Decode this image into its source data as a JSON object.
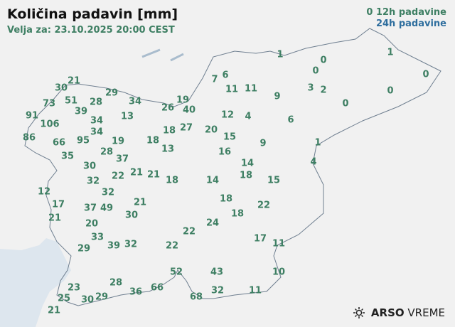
{
  "header": {
    "title": "Količina padavin [mm]",
    "valid": "Velja za: 23.10.2025 20:00 CEST"
  },
  "legend": {
    "item12": "12h padavine",
    "item24": "24h padavine",
    "marker12": "0",
    "color12": "#3e7f63",
    "color24": "#2e6e9e"
  },
  "stations": [
    "1",
    "0",
    "0",
    "1",
    "0",
    "0",
    "0",
    "3",
    "2",
    "6",
    "7",
    "11",
    "11",
    "9",
    "6",
    "12",
    "4",
    "20",
    "15",
    "9",
    "1",
    "4",
    "16",
    "14",
    "18",
    "15",
    "14",
    "18",
    "21",
    "21",
    "22",
    "18",
    "13",
    "18",
    "27",
    "26",
    "19",
    "40",
    "34",
    "13",
    "29",
    "21",
    "30",
    "73",
    "51",
    "28",
    "39",
    "34",
    "34",
    "95",
    "91",
    "106",
    "86",
    "66",
    "35",
    "19",
    "28",
    "37",
    "30",
    "32",
    "32",
    "12",
    "17",
    "21",
    "37",
    "49",
    "21",
    "30",
    "20",
    "33",
    "39",
    "32",
    "29",
    "22",
    "22",
    "24",
    "18",
    "18",
    "22",
    "17",
    "11",
    "10",
    "52",
    "43",
    "28",
    "36",
    "66",
    "68",
    "32",
    "11",
    "29",
    "30",
    "23",
    "25",
    "21"
  ],
  "logo": {
    "brand": "ARSO",
    "product": "VREME",
    "icon": "sun-cloud-icon"
  },
  "colors": {
    "land": "#f1f1f1",
    "sea": "#dde6ee",
    "border": "#6f7f90"
  }
}
